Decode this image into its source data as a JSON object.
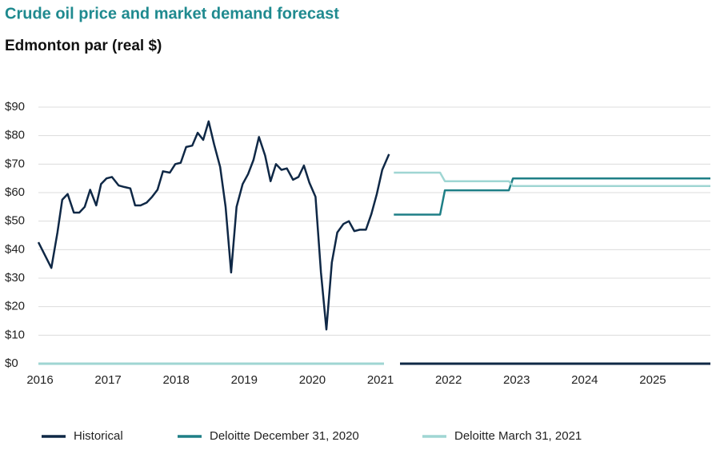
{
  "chart_data": {
    "type": "line",
    "title": "Crude oil price and market demand forecast",
    "subtitle": "Edmonton par (real $)",
    "xlim": [
      2016,
      2025.87
    ],
    "xticks": [
      2016,
      2017,
      2018,
      2019,
      2020,
      2021,
      2022,
      2023,
      2024,
      2025
    ],
    "ylim": [
      0,
      90
    ],
    "yticks": [
      {
        "value": 0,
        "label": "$0"
      },
      {
        "value": 10,
        "label": "$10"
      },
      {
        "value": 20,
        "label": "$20"
      },
      {
        "value": 30,
        "label": "$30"
      },
      {
        "value": 40,
        "label": "$40"
      },
      {
        "value": 50,
        "label": "$50"
      },
      {
        "value": 60,
        "label": "$60"
      },
      {
        "value": 70,
        "label": "$70"
      },
      {
        "value": 80,
        "label": "$80"
      },
      {
        "value": 90,
        "label": "$90"
      }
    ],
    "grid": true,
    "legend": "bottom",
    "series": [
      {
        "name": "Historical",
        "color": "#0f2846",
        "x": [
          2016.0,
          2016.19,
          2016.28,
          2016.35,
          2016.43,
          2016.52,
          2016.6,
          2016.68,
          2016.76,
          2016.85,
          2016.92,
          2017.0,
          2017.08,
          2017.18,
          2017.26,
          2017.35,
          2017.42,
          2017.5,
          2017.59,
          2017.67,
          2017.75,
          2017.83,
          2017.93,
          2018.01,
          2018.09,
          2018.17,
          2018.26,
          2018.34,
          2018.42,
          2018.5,
          2018.58,
          2018.67,
          2018.75,
          2018.83,
          2018.91,
          2019.0,
          2019.08,
          2019.16,
          2019.24,
          2019.33,
          2019.41,
          2019.49,
          2019.57,
          2019.65,
          2019.74,
          2019.82,
          2019.9,
          2019.98,
          2020.07,
          2020.15,
          2020.23,
          2020.31,
          2020.39,
          2020.48,
          2020.56,
          2020.64,
          2020.72,
          2020.81,
          2020.89,
          2020.97,
          2021.05,
          2021.15
        ],
        "values": [
          42.6,
          33.6,
          46,
          57.5,
          59.5,
          53,
          53,
          55,
          61,
          55.5,
          63,
          65,
          65.5,
          62.5,
          62,
          61.5,
          55.5,
          55.5,
          56.5,
          58.5,
          61,
          67.5,
          67,
          70,
          70.5,
          76,
          76.5,
          81,
          78.5,
          85,
          77,
          69,
          55,
          32,
          55,
          63,
          66.5,
          71.5,
          79.5,
          73,
          64,
          70,
          68,
          68.5,
          64.5,
          65.5,
          69.5,
          63.5,
          58.5,
          32,
          12,
          35.5,
          46,
          49,
          50,
          46.5,
          47,
          47,
          52.5,
          59.5,
          68,
          73.5
        ]
      },
      {
        "name": "Deloitte December 31, 2020",
        "color": "#1e7f86",
        "x": [
          2021.22,
          2021.9,
          2021.97,
          2022.91,
          2022.97,
          2025.87
        ],
        "values": [
          52.3,
          52.3,
          60.8,
          60.8,
          65,
          65
        ]
      },
      {
        "name": "Deloitte March 31, 2021",
        "color": "#9fd6d3",
        "x": [
          2021.22,
          2021.9,
          2021.97,
          2022.91,
          2022.97,
          2025.87
        ],
        "values": [
          67,
          67,
          64,
          64,
          62.3,
          62.3
        ]
      }
    ]
  }
}
